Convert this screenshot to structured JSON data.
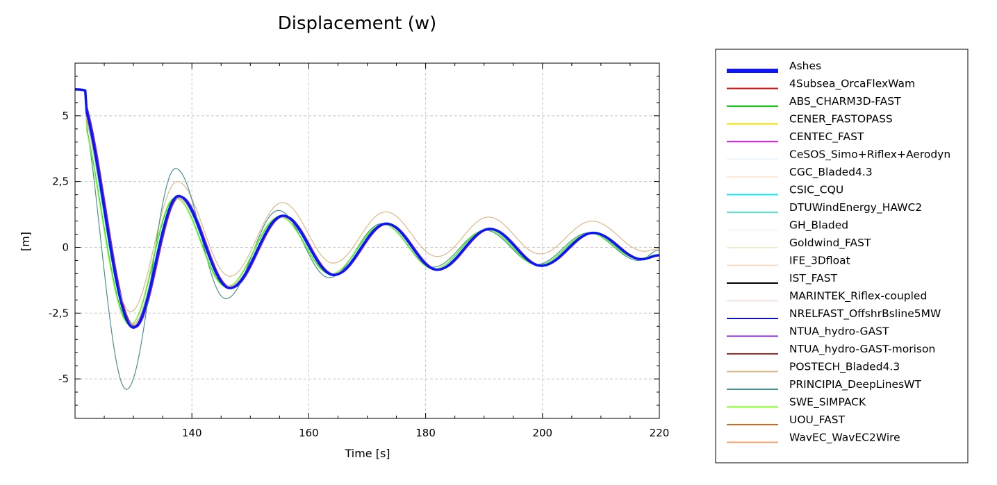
{
  "chart_data": {
    "type": "line",
    "title": "Displacement (w)",
    "xlabel": "Time [s]",
    "ylabel": "[m]",
    "xlim": [
      120,
      220
    ],
    "ylim": [
      -6.5,
      7
    ],
    "x_ticks": [
      140,
      160,
      180,
      200,
      220
    ],
    "x_tick_labels": [
      "140",
      "160",
      "180",
      "200",
      "220"
    ],
    "y_ticks": [
      5,
      2.5,
      0,
      -2.5,
      -5
    ],
    "y_tick_labels": [
      "5",
      "2,5",
      "0",
      "-2,5",
      "-5"
    ],
    "grid": true,
    "legend": "right",
    "series": [
      {
        "name": "Ashes",
        "color": "#0a14ff",
        "bold": true,
        "shift": 0.5,
        "amp": 1.05,
        "scale": 1.0,
        "points": [
          [
            120,
            6.0
          ],
          [
            130,
            -3.05
          ],
          [
            137.7,
            1.95
          ],
          [
            146.5,
            -1.55
          ],
          [
            155.6,
            1.2
          ],
          [
            164.3,
            -1.05
          ],
          [
            173.3,
            0.9
          ],
          [
            182,
            -0.85
          ],
          [
            191,
            0.7
          ],
          [
            199.8,
            -0.7
          ],
          [
            208.7,
            0.55
          ],
          [
            217,
            -0.45
          ],
          [
            220,
            -0.3
          ]
        ]
      },
      {
        "name": "4Subsea_OrcaFlexWam",
        "color": "#e01010",
        "shift": 0.1,
        "amp": 1.0,
        "scale": 0.99
      },
      {
        "name": "ABS_CHARM3D-FAST",
        "color": "#10d010",
        "shift": -0.5,
        "amp": 0.96,
        "scale": 0.99
      },
      {
        "name": "CENER_FASTOPASS",
        "color": "#f0e000",
        "shift": 0.0,
        "amp": 0.98,
        "scale": 1.0
      },
      {
        "name": "CENTEC_FAST",
        "color": "#ff10ff",
        "shift": 0.2,
        "amp": 0.97,
        "scale": 1.0
      },
      {
        "name": "CeSOS_Simo+Riflex+Aerodyn",
        "color": "#e8f4ff",
        "shift": 0.0,
        "amp": 0.97,
        "scale": 1.0
      },
      {
        "name": "CGC_Bladed4.3",
        "color": "#fde8d8",
        "shift": 0.0,
        "amp": 0.97,
        "scale": 1.0
      },
      {
        "name": "CSIC_CQU",
        "color": "#10e8f0",
        "shift": 0.1,
        "amp": 0.96,
        "scale": 1.0
      },
      {
        "name": "DTUWindEnergy_HAWC2",
        "color": "#50e8c8",
        "shift": -0.2,
        "amp": 0.97,
        "scale": 1.0
      },
      {
        "name": "GH_Bladed",
        "color": "#eef6fb",
        "shift": 0.0,
        "amp": 0.97,
        "scale": 1.0
      },
      {
        "name": "Goldwind_FAST",
        "color": "#f0ecd2",
        "shift": 0.0,
        "amp": 0.97,
        "scale": 1.0
      },
      {
        "name": "IFE_3Dfloat",
        "color": "#fadcc4",
        "shift": 0.0,
        "amp": 0.97,
        "scale": 1.0
      },
      {
        "name": "IST_FAST",
        "color": "#000000",
        "shift": 0.1,
        "amp": 0.98,
        "scale": 1.0
      },
      {
        "name": "MARINTEK_Riflex-coupled",
        "color": "#f6e6e0",
        "shift": 0.0,
        "amp": 0.97,
        "scale": 1.0
      },
      {
        "name": "NRELFAST_OffshrBsline5MW",
        "color": "#1010d0",
        "shift": 0.3,
        "amp": 1.0,
        "scale": 1.0
      },
      {
        "name": "NTUA_hydro-GAST",
        "color": "#8a2be2",
        "shift": 0.3,
        "amp": 0.99,
        "scale": 1.0
      },
      {
        "name": "NTUA_hydro-GAST-morison",
        "color": "#a52a2a",
        "shift": 0.2,
        "amp": 0.99,
        "scale": 1.0
      },
      {
        "name": "POSTECH_Bladed4.3",
        "color": "#deb887",
        "shift": 0.0,
        "amp": 0.82,
        "scale": 1.0,
        "points": [
          [
            120,
            6.0
          ],
          [
            129.5,
            -2.45
          ],
          [
            137.5,
            2.5
          ],
          [
            146.5,
            -1.1
          ],
          [
            155.5,
            1.7
          ],
          [
            164.2,
            -0.6
          ],
          [
            173.2,
            1.35
          ],
          [
            182,
            -0.35
          ],
          [
            190.8,
            1.15
          ],
          [
            199.6,
            -0.25
          ],
          [
            208.5,
            1.0
          ],
          [
            217.5,
            -0.15
          ],
          [
            220,
            -0.05
          ]
        ]
      },
      {
        "name": "PRINCIPIA_DeepLinesWT",
        "color": "#4a9090",
        "shift": 0.0,
        "amp": 1.0,
        "scale": 1.0,
        "points": [
          [
            120,
            6.0
          ],
          [
            128.8,
            -5.4
          ],
          [
            137.2,
            3.0
          ],
          [
            145.8,
            -1.95
          ],
          [
            154.8,
            1.4
          ],
          [
            163.5,
            -1.15
          ],
          [
            172.5,
            0.9
          ],
          [
            181.3,
            -0.75
          ],
          [
            190.2,
            0.65
          ],
          [
            199,
            -0.65
          ],
          [
            207.9,
            0.55
          ],
          [
            216.5,
            -0.5
          ],
          [
            220,
            -0.1
          ]
        ]
      },
      {
        "name": "SWE_SIMPACK",
        "color": "#80ff20",
        "shift": -0.6,
        "amp": 0.97,
        "scale": 1.0
      },
      {
        "name": "UOU_FAST",
        "color": "#d2691e",
        "shift": 0.1,
        "amp": 0.99,
        "scale": 1.0
      },
      {
        "name": "WavEC_WavEC2Wire",
        "color": "#f4a070",
        "shift": -0.1,
        "amp": 0.96,
        "scale": 1.0
      }
    ]
  }
}
